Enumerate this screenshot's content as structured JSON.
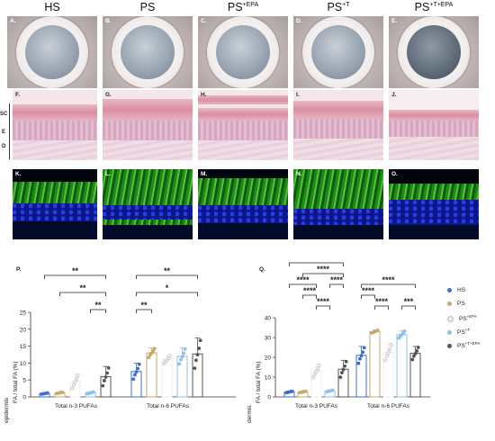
{
  "columns": [
    {
      "label": "HS",
      "sup": ""
    },
    {
      "label": "PS",
      "sup": ""
    },
    {
      "label": "PS",
      "sup": "+EPA"
    },
    {
      "label": "PS",
      "sup": "+T"
    },
    {
      "label": "PS",
      "sup": "+T+EPA"
    }
  ],
  "panel_letters": {
    "dish": [
      "A.",
      "B.",
      "C.",
      "D.",
      "E."
    ],
    "he": [
      "F.",
      "G.",
      "H.",
      "I.",
      "J."
    ],
    "if": [
      "K.",
      "L.",
      "M.",
      "N.",
      "O."
    ]
  },
  "layer_labels": [
    "SC",
    "E",
    "D"
  ],
  "legend": [
    {
      "base": "HS",
      "sup": "",
      "color": "#3a6fd0"
    },
    {
      "base": "PS",
      "sup": "",
      "color": "#c9a86a"
    },
    {
      "base": "PS",
      "sup": "+EPA",
      "color": "#ececec"
    },
    {
      "base": "PS",
      "sup": "+T",
      "color": "#8fc0ea"
    },
    {
      "base": "PS",
      "sup": "+T+EPA",
      "color": "#555555"
    }
  ],
  "chart_data": [
    {
      "panel": "P.",
      "type": "bar",
      "side_label": "epidermis",
      "ylabel": "FA / total FA (%)",
      "ylim": [
        0,
        25
      ],
      "yticks": [
        0,
        5,
        10,
        15,
        20,
        25
      ],
      "groups": [
        "Total n-3 PUFAs",
        "Total n-6 PUFAs"
      ],
      "series": [
        {
          "name": "HS",
          "values": [
            1.0,
            7.5
          ],
          "sd": [
            0.2,
            2.5
          ]
        },
        {
          "name": "PS",
          "values": [
            1.2,
            13.0
          ],
          "sd": [
            0.2,
            1.5
          ]
        },
        {
          "name": "PS+EPA",
          "values": [
            4.5,
            11.0
          ],
          "sd": [
            2.2,
            1.3
          ]
        },
        {
          "name": "PS+T",
          "values": [
            1.2,
            12.0
          ],
          "sd": [
            0.3,
            2.5
          ]
        },
        {
          "name": "PS+T+EPA",
          "values": [
            6.0,
            12.7
          ],
          "sd": [
            3.0,
            4.7
          ]
        }
      ],
      "significance": [
        {
          "label": "**",
          "group": 0,
          "from": 0,
          "to": 4,
          "level": 3
        },
        {
          "label": "**",
          "group": 0,
          "from": 1,
          "to": 4,
          "level": 2
        },
        {
          "label": "**",
          "group": 0,
          "from": 3,
          "to": 4,
          "level": 1
        },
        {
          "label": "**",
          "group": 1,
          "from": 0,
          "to": 4,
          "level": 3
        },
        {
          "label": "*",
          "group": 1,
          "from": 0,
          "to": 4,
          "level": 2
        },
        {
          "label": "**",
          "group": 1,
          "from": 0,
          "to": 1,
          "level": 1
        }
      ]
    },
    {
      "panel": "Q.",
      "type": "bar",
      "side_label": "dermis",
      "ylabel": "FA / total FA (%)",
      "ylim": [
        0,
        40
      ],
      "yticks": [
        0,
        10,
        20,
        30,
        40
      ],
      "groups": [
        "Total n-3 PUFAs",
        "Total n-6 PUFAs"
      ],
      "series": [
        {
          "name": "HS",
          "values": [
            2.5,
            21.0
          ],
          "sd": [
            0.4,
            4.5
          ]
        },
        {
          "name": "PS",
          "values": [
            2.5,
            33.0
          ],
          "sd": [
            0.4,
            0.8
          ]
        },
        {
          "name": "PS+EPA",
          "values": [
            13.0,
            22.5
          ],
          "sd": [
            3.5,
            4.5
          ]
        },
        {
          "name": "PS+T",
          "values": [
            3.0,
            31.5
          ],
          "sd": [
            0.5,
            2.0
          ]
        },
        {
          "name": "PS+T+EPA",
          "values": [
            14.0,
            22.0
          ],
          "sd": [
            4.5,
            3.5
          ]
        }
      ],
      "significance": [
        {
          "label": "****",
          "group": 0,
          "from": 0,
          "to": 4,
          "level": 5
        },
        {
          "label": "****",
          "group": 0,
          "from": 1,
          "to": 4,
          "level": 4
        },
        {
          "label": "****",
          "group": 0,
          "from": 0,
          "to": 2,
          "level": 3
        },
        {
          "label": "****",
          "group": 0,
          "from": 3,
          "to": 4,
          "level": 3
        },
        {
          "label": "****",
          "group": 0,
          "from": 1,
          "to": 2,
          "level": 2
        },
        {
          "label": "****",
          "group": 0,
          "from": 2,
          "to": 3,
          "level": 1
        },
        {
          "label": "****",
          "group": 1,
          "from": 0,
          "to": 4,
          "level": 3
        },
        {
          "label": "****",
          "group": 1,
          "from": 0,
          "to": 1,
          "level": 2
        },
        {
          "label": "****",
          "group": 1,
          "from": 1,
          "to": 2,
          "level": 1
        },
        {
          "label": "***",
          "group": 1,
          "from": 3,
          "to": 4,
          "level": 1
        }
      ]
    }
  ]
}
